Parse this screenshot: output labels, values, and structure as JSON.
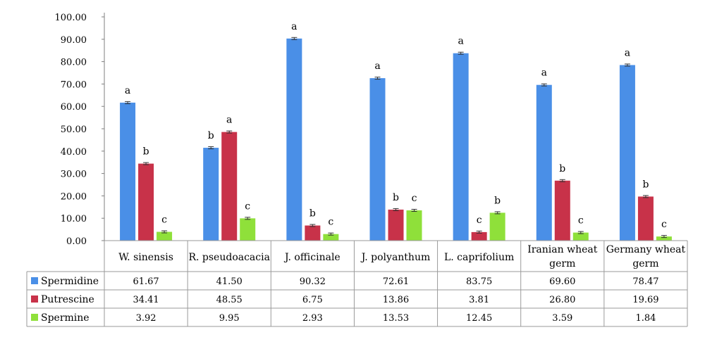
{
  "chart_data": {
    "type": "bar",
    "title": "",
    "xlabel": "",
    "ylabel": "",
    "ylim": [
      0,
      100
    ],
    "yticks": [
      "0.00",
      "10.00",
      "20.00",
      "30.00",
      "40.00",
      "50.00",
      "60.00",
      "70.00",
      "80.00",
      "90.00",
      "100.00"
    ],
    "categories": [
      [
        "W. sinensis"
      ],
      [
        "R. pseudoacacia"
      ],
      [
        "J. officinale"
      ],
      [
        "J. polyanthum"
      ],
      [
        "L. caprifolium"
      ],
      [
        "Iranian wheat",
        "germ"
      ],
      [
        "Germany wheat",
        "germ"
      ]
    ],
    "grid": false,
    "legend": "data-table-left",
    "error_bars": true,
    "series": [
      {
        "name": "Spermidine",
        "color": "#4a8fe7",
        "values": [
          61.67,
          41.5,
          90.32,
          72.61,
          83.75,
          69.6,
          78.47
        ],
        "display": [
          "61.67",
          "41.50",
          "90.32",
          "72.61",
          "83.75",
          "69.60",
          "78.47"
        ],
        "letters": [
          "a",
          "b",
          "a",
          "a",
          "a",
          "a",
          "a"
        ]
      },
      {
        "name": "Putrescine",
        "color": "#c83249",
        "values": [
          34.41,
          48.55,
          6.75,
          13.86,
          3.81,
          26.8,
          19.69
        ],
        "display": [
          "34.41",
          "48.55",
          "6.75",
          "13.86",
          "3.81",
          "26.80",
          "19.69"
        ],
        "letters": [
          "b",
          "a",
          "b",
          "b",
          "c",
          "b",
          "b"
        ]
      },
      {
        "name": "Spermine",
        "color": "#8fe03a",
        "values": [
          3.92,
          9.95,
          2.93,
          13.53,
          12.45,
          3.59,
          1.84
        ],
        "display": [
          "3.92",
          "9.95",
          "2.93",
          "13.53",
          "12.45",
          "3.59",
          "1.84"
        ],
        "letters": [
          "c",
          "c",
          "c",
          "c",
          "b",
          "c",
          "c"
        ]
      }
    ]
  }
}
